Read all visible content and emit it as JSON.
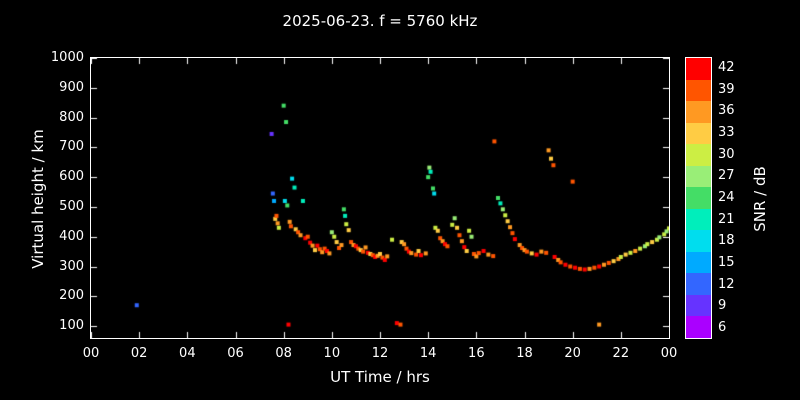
{
  "title": "2025-06-23. f = 5760 kHz",
  "chart_data": {
    "type": "scatter",
    "title": "2025-06-23. f = 5760 kHz",
    "xlabel": "UT Time / hrs",
    "ylabel": "Virtual height / km",
    "colorbar_label": "SNR / dB",
    "xlim": [
      0,
      24
    ],
    "ylim": [
      60,
      1000
    ],
    "grid": false,
    "background": "#000000",
    "frame_color": "#ffffff",
    "point_size": 4,
    "x_ticks": [
      {
        "value": 0,
        "label": "00"
      },
      {
        "value": 2,
        "label": "02"
      },
      {
        "value": 4,
        "label": "04"
      },
      {
        "value": 6,
        "label": "06"
      },
      {
        "value": 8,
        "label": "08"
      },
      {
        "value": 10,
        "label": "10"
      },
      {
        "value": 12,
        "label": "12"
      },
      {
        "value": 14,
        "label": "14"
      },
      {
        "value": 16,
        "label": "16"
      },
      {
        "value": 18,
        "label": "18"
      },
      {
        "value": 20,
        "label": "20"
      },
      {
        "value": 22,
        "label": "22"
      },
      {
        "value": 24,
        "label": "00"
      }
    ],
    "y_ticks": [
      100,
      200,
      300,
      400,
      500,
      600,
      700,
      800,
      900,
      1000
    ],
    "snr_palette": [
      {
        "snr": 6,
        "color": "#aa00ff"
      },
      {
        "snr": 9,
        "color": "#6633ff"
      },
      {
        "snr": 12,
        "color": "#3366ff"
      },
      {
        "snr": 15,
        "color": "#00aaff"
      },
      {
        "snr": 18,
        "color": "#00ddee"
      },
      {
        "snr": 21,
        "color": "#00eebb"
      },
      {
        "snr": 24,
        "color": "#44dd66"
      },
      {
        "snr": 27,
        "color": "#99ee77"
      },
      {
        "snr": 30,
        "color": "#ccee44"
      },
      {
        "snr": 33,
        "color": "#ffcc44"
      },
      {
        "snr": 36,
        "color": "#ff9922"
      },
      {
        "snr": 39,
        "color": "#ff5500"
      },
      {
        "snr": 42,
        "color": "#ff0000"
      }
    ],
    "points_format": [
      "ut_hours",
      "virtual_height_km",
      "snr_db"
    ],
    "points": [
      [
        1.9,
        170,
        12
      ],
      [
        7.5,
        745,
        9
      ],
      [
        7.55,
        545,
        12
      ],
      [
        7.6,
        520,
        15
      ],
      [
        7.65,
        460,
        33
      ],
      [
        7.7,
        470,
        39
      ],
      [
        7.75,
        445,
        36
      ],
      [
        7.8,
        430,
        30
      ],
      [
        8.0,
        840,
        24
      ],
      [
        8.1,
        785,
        24
      ],
      [
        8.05,
        520,
        18
      ],
      [
        8.15,
        505,
        24
      ],
      [
        8.2,
        105,
        42
      ],
      [
        8.25,
        450,
        36
      ],
      [
        8.3,
        435,
        39
      ],
      [
        8.35,
        595,
        18
      ],
      [
        8.45,
        565,
        21
      ],
      [
        8.5,
        425,
        33
      ],
      [
        8.6,
        415,
        39
      ],
      [
        8.7,
        405,
        36
      ],
      [
        8.8,
        520,
        21
      ],
      [
        8.9,
        395,
        42
      ],
      [
        9.0,
        400,
        39
      ],
      [
        9.1,
        380,
        42
      ],
      [
        9.2,
        370,
        36
      ],
      [
        9.3,
        355,
        33
      ],
      [
        9.4,
        370,
        42
      ],
      [
        9.5,
        358,
        39
      ],
      [
        9.6,
        348,
        36
      ],
      [
        9.7,
        360,
        39
      ],
      [
        9.8,
        352,
        42
      ],
      [
        9.9,
        344,
        36
      ],
      [
        10.0,
        415,
        27
      ],
      [
        10.1,
        400,
        30
      ],
      [
        10.2,
        382,
        33
      ],
      [
        10.3,
        362,
        39
      ],
      [
        10.4,
        372,
        36
      ],
      [
        10.5,
        492,
        24
      ],
      [
        10.55,
        470,
        21
      ],
      [
        10.6,
        442,
        30
      ],
      [
        10.7,
        422,
        33
      ],
      [
        10.8,
        382,
        39
      ],
      [
        10.9,
        372,
        36
      ],
      [
        11.0,
        368,
        42
      ],
      [
        11.1,
        360,
        39
      ],
      [
        11.2,
        355,
        33
      ],
      [
        11.3,
        350,
        39
      ],
      [
        11.4,
        364,
        36
      ],
      [
        11.5,
        346,
        42
      ],
      [
        11.6,
        342,
        33
      ],
      [
        11.7,
        338,
        39
      ],
      [
        11.8,
        332,
        42
      ],
      [
        11.9,
        336,
        36
      ],
      [
        12.0,
        342,
        33
      ],
      [
        12.1,
        330,
        39
      ],
      [
        12.2,
        322,
        42
      ],
      [
        12.3,
        334,
        36
      ],
      [
        12.5,
        390,
        30
      ],
      [
        12.7,
        110,
        42
      ],
      [
        12.85,
        105,
        39
      ],
      [
        12.9,
        382,
        33
      ],
      [
        13.0,
        375,
        36
      ],
      [
        13.1,
        360,
        39
      ],
      [
        13.2,
        350,
        42
      ],
      [
        13.3,
        345,
        36
      ],
      [
        13.5,
        340,
        39
      ],
      [
        13.6,
        352,
        33
      ],
      [
        13.7,
        338,
        42
      ],
      [
        13.9,
        344,
        36
      ],
      [
        14.0,
        600,
        24
      ],
      [
        14.05,
        632,
        27
      ],
      [
        14.1,
        618,
        21
      ],
      [
        14.2,
        562,
        24
      ],
      [
        14.25,
        545,
        18
      ],
      [
        14.3,
        430,
        30
      ],
      [
        14.4,
        420,
        33
      ],
      [
        14.5,
        395,
        39
      ],
      [
        14.6,
        385,
        36
      ],
      [
        14.7,
        375,
        42
      ],
      [
        14.8,
        368,
        39
      ],
      [
        15.0,
        440,
        30
      ],
      [
        15.1,
        462,
        27
      ],
      [
        15.2,
        430,
        33
      ],
      [
        15.3,
        405,
        39
      ],
      [
        15.4,
        385,
        36
      ],
      [
        15.5,
        365,
        42
      ],
      [
        15.6,
        352,
        33
      ],
      [
        15.7,
        420,
        30
      ],
      [
        15.8,
        400,
        27
      ],
      [
        15.9,
        342,
        39
      ],
      [
        16.0,
        334,
        36
      ],
      [
        16.1,
        345,
        39
      ],
      [
        16.3,
        352,
        42
      ],
      [
        16.5,
        340,
        36
      ],
      [
        16.7,
        335,
        39
      ],
      [
        16.75,
        720,
        39
      ],
      [
        16.9,
        530,
        24
      ],
      [
        17.0,
        512,
        21
      ],
      [
        17.1,
        492,
        27
      ],
      [
        17.2,
        472,
        30
      ],
      [
        17.3,
        452,
        33
      ],
      [
        17.4,
        432,
        36
      ],
      [
        17.5,
        412,
        39
      ],
      [
        17.6,
        392,
        42
      ],
      [
        17.8,
        372,
        36
      ],
      [
        17.9,
        362,
        39
      ],
      [
        18.0,
        355,
        36
      ],
      [
        18.1,
        350,
        39
      ],
      [
        18.3,
        344,
        33
      ],
      [
        18.5,
        340,
        42
      ],
      [
        18.7,
        350,
        36
      ],
      [
        18.9,
        346,
        39
      ],
      [
        19.0,
        690,
        36
      ],
      [
        19.1,
        662,
        33
      ],
      [
        19.2,
        640,
        39
      ],
      [
        19.25,
        332,
        42
      ],
      [
        19.4,
        322,
        36
      ],
      [
        19.5,
        314,
        39
      ],
      [
        19.7,
        306,
        42
      ],
      [
        19.9,
        300,
        39
      ],
      [
        20.0,
        585,
        39
      ],
      [
        20.1,
        296,
        42
      ],
      [
        20.3,
        292,
        39
      ],
      [
        20.5,
        290,
        42
      ],
      [
        20.7,
        292,
        36
      ],
      [
        20.9,
        296,
        39
      ],
      [
        21.1,
        105,
        36
      ],
      [
        21.1,
        300,
        42
      ],
      [
        21.3,
        306,
        36
      ],
      [
        21.5,
        312,
        39
      ],
      [
        21.7,
        318,
        33
      ],
      [
        21.9,
        325,
        36
      ],
      [
        22.0,
        332,
        30
      ],
      [
        22.2,
        340,
        33
      ],
      [
        22.4,
        346,
        30
      ],
      [
        22.6,
        352,
        36
      ],
      [
        22.8,
        360,
        30
      ],
      [
        23.0,
        368,
        27
      ],
      [
        23.1,
        375,
        30
      ],
      [
        23.3,
        382,
        33
      ],
      [
        23.5,
        390,
        30
      ],
      [
        23.6,
        398,
        27
      ],
      [
        23.8,
        408,
        30
      ],
      [
        23.9,
        418,
        27
      ],
      [
        24.0,
        428,
        30
      ]
    ]
  }
}
